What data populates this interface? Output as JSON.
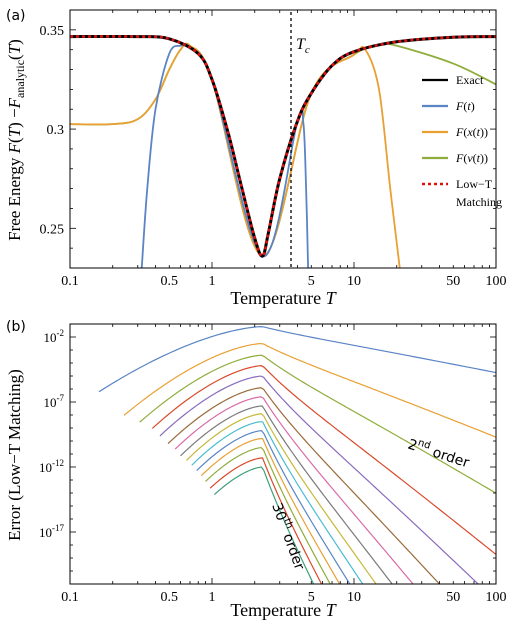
{
  "chart_data": [
    {
      "panel_label": "(a)",
      "type": "line",
      "xscale": "log",
      "xlim": [
        0.1,
        100
      ],
      "ylim": [
        0.23,
        0.36
      ],
      "xlabel": "Temperature T",
      "ylabel": "Free Energy F(T)−F_analytic(T)",
      "xtick_labels": [
        "0.1",
        "0.5",
        "1",
        "5",
        "10",
        "50",
        "100"
      ],
      "ytick_labels": [
        "0.25",
        "0.3",
        "0.35"
      ],
      "annotation": "T_c",
      "critical_temperature": 2.269,
      "legend": {
        "placement": "right",
        "entries": [
          "Exact",
          "F(t)",
          "F(x(t))",
          "F(v(t))",
          "Low−T Matching"
        ]
      },
      "series": [
        {
          "name": "Exact",
          "color": "#000000",
          "style": "solid",
          "x": [
            0.1,
            0.3,
            0.5,
            0.8,
            1.0,
            1.3,
            1.6,
            2.0,
            2.269,
            2.5,
            3.0,
            4.0,
            5.0,
            7.0,
            10,
            20,
            50,
            100
          ],
          "y": [
            0.3466,
            0.3466,
            0.3455,
            0.338,
            0.325,
            0.298,
            0.272,
            0.245,
            0.236,
            0.248,
            0.275,
            0.304,
            0.318,
            0.332,
            0.339,
            0.344,
            0.3463,
            0.3466
          ]
        },
        {
          "name": "F(t)",
          "color": "#5a84c4",
          "style": "solid",
          "x": [
            0.32,
            0.35,
            0.4,
            0.5,
            0.6,
            0.7,
            1.0,
            2.269,
            4.0,
            4.4,
            4.6,
            4.75
          ],
          "y": [
            0.23,
            0.27,
            0.31,
            0.338,
            0.342,
            0.341,
            0.325,
            0.236,
            0.304,
            0.303,
            0.27,
            0.23
          ]
        },
        {
          "name": "F(x(t))",
          "color": "#e8a033",
          "style": "solid",
          "x": [
            0.1,
            0.2,
            0.3,
            0.4,
            0.5,
            0.6,
            0.7,
            1.0,
            2.269,
            5.0,
            10,
            12,
            15,
            18,
            21
          ],
          "y": [
            0.3025,
            0.3025,
            0.305,
            0.315,
            0.33,
            0.34,
            0.342,
            0.325,
            0.236,
            0.318,
            0.3375,
            0.34,
            0.32,
            0.27,
            0.23
          ]
        },
        {
          "name": "F(v(t))",
          "color": "#8fad3c",
          "style": "solid",
          "x": [
            0.1,
            0.2,
            0.3,
            0.4,
            0.5,
            0.6,
            0.7,
            1.0,
            2.269,
            5.0,
            10,
            15,
            20,
            50,
            100
          ],
          "y": [
            0.3025,
            0.3025,
            0.305,
            0.315,
            0.33,
            0.34,
            0.342,
            0.325,
            0.236,
            0.318,
            0.3375,
            0.3425,
            0.342,
            0.333,
            0.3225
          ]
        },
        {
          "name": "Low−T Matching",
          "color": "#dd1111",
          "style": "dotted",
          "x": [
            0.1,
            0.3,
            0.5,
            0.8,
            1.0,
            1.3,
            1.6,
            2.0,
            2.269,
            2.5,
            3.0,
            4.0,
            5.0,
            7.0,
            10,
            20,
            50,
            100
          ],
          "y": [
            0.3466,
            0.3466,
            0.3455,
            0.338,
            0.325,
            0.298,
            0.272,
            0.245,
            0.236,
            0.248,
            0.275,
            0.304,
            0.318,
            0.332,
            0.339,
            0.344,
            0.3463,
            0.3466
          ]
        }
      ]
    },
    {
      "panel_label": "(b)",
      "type": "line",
      "xscale": "log",
      "yscale": "log",
      "xlim": [
        0.1,
        100
      ],
      "ylim": [
        1e-21,
        0.1
      ],
      "xlabel": "Temperature T",
      "ylabel": "Error (Low−T Matching)",
      "xtick_labels": [
        "0.1",
        "0.5",
        "1",
        "5",
        "10",
        "50",
        "100"
      ],
      "ytick_labels": [
        "10-17",
        "10-12",
        "10-7",
        "10-2"
      ],
      "annotations": {
        "low": {
          "text": "2",
          "sup": "nd",
          "rest": " order"
        },
        "high": {
          "text": "30",
          "sup": "th",
          "rest": " order"
        }
      },
      "peak_temperature": 2.269,
      "curve_colors": [
        "#5a84c4",
        "#e8a033",
        "#8fad3c",
        "#d94a2b",
        "#8a6bbd",
        "#9a6a3a",
        "#d96ba6",
        "#7a7a7a",
        "#c7b83a",
        "#4bbbd0",
        "#5a84c4",
        "#e8a033",
        "#8fad3c",
        "#d94a2b",
        "#3fa07a"
      ],
      "series": [
        {
          "order": 2,
          "x_start": 0.16,
          "peak_log10": -1.2,
          "slope_low": 8.0,
          "slope_high": 2.8
        },
        {
          "order": 4,
          "x_start": 0.24,
          "peak_log10": -2.5,
          "slope_low": 11.5,
          "slope_high": 5.7
        },
        {
          "order": 6,
          "x_start": 0.31,
          "peak_log10": -3.4,
          "slope_low": 13.0,
          "slope_high": 8.4
        },
        {
          "order": 8,
          "x_start": 0.38,
          "peak_log10": -4.2,
          "slope_low": 14.5,
          "slope_high": 11.5
        },
        {
          "order": 10,
          "x_start": 0.43,
          "peak_log10": -5.0,
          "slope_low": 15.5,
          "slope_high": 13.7
        },
        {
          "order": 12,
          "x_start": 0.49,
          "peak_log10": -5.9,
          "slope_low": 16.5,
          "slope_high": 15.7
        },
        {
          "order": 14,
          "x_start": 0.55,
          "peak_log10": -6.6,
          "slope_low": 17.5,
          "slope_high": 17.5
        },
        {
          "order": 16,
          "x_start": 0.6,
          "peak_log10": -7.3,
          "slope_low": 18.5,
          "slope_high": 19.2
        },
        {
          "order": 18,
          "x_start": 0.66,
          "peak_log10": -7.9,
          "slope_low": 19.5,
          "slope_high": 20.8
        },
        {
          "order": 20,
          "x_start": 0.72,
          "peak_log10": -8.5,
          "slope_low": 20.5,
          "slope_high": 22.3
        },
        {
          "order": 22,
          "x_start": 0.78,
          "peak_log10": -9.2,
          "slope_low": 21.0,
          "slope_high": 23.9
        },
        {
          "order": 24,
          "x_start": 0.84,
          "peak_log10": -9.8,
          "slope_low": 22.0,
          "slope_high": 25.4
        },
        {
          "order": 26,
          "x_start": 0.9,
          "peak_log10": -10.5,
          "slope_low": 22.5,
          "slope_high": 26.8
        },
        {
          "order": 28,
          "x_start": 0.97,
          "peak_log10": -11.3,
          "slope_low": 23.0,
          "slope_high": 28.0
        },
        {
          "order": 30,
          "x_start": 1.04,
          "peak_log10": -12.0,
          "slope_low": 24.0,
          "slope_high": 29.6
        }
      ]
    }
  ]
}
